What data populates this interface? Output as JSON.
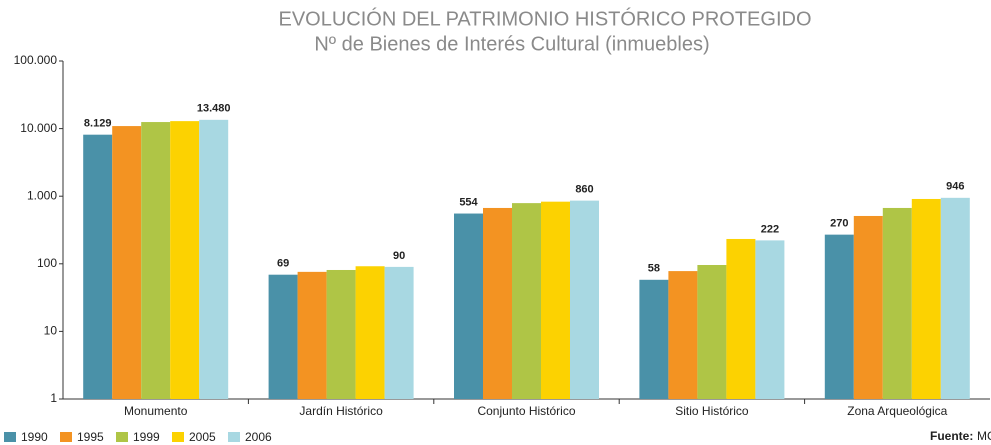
{
  "chart_data": {
    "type": "bar",
    "title": "EVOLUCIÓN DEL PATRIMONIO HISTÓRICO PROTEGIDO",
    "subtitle": "Nº de Bienes de Interés Cultural (inmuebles)",
    "categories": [
      "Monumento",
      "Jardín Histórico",
      "Conjunto Histórico",
      "Sitio Histórico",
      "Zona Arqueológica"
    ],
    "series": [
      {
        "name": "1990",
        "color": "#4a91a8",
        "values": [
          8129,
          69,
          554,
          58,
          270
        ],
        "value_labels": [
          "8.129",
          "69",
          "554",
          "58",
          "270"
        ]
      },
      {
        "name": "1995",
        "color": "#f39322",
        "values": [
          10900,
          76,
          670,
          78,
          510
        ]
      },
      {
        "name": "1999",
        "color": "#afc546",
        "values": [
          12500,
          81,
          790,
          96,
          670
        ]
      },
      {
        "name": "2005",
        "color": "#fcd201",
        "values": [
          12900,
          92,
          830,
          233,
          910
        ]
      },
      {
        "name": "2006",
        "color": "#a8d8e2",
        "values": [
          13480,
          90,
          860,
          222,
          946
        ],
        "value_labels": [
          "13.480",
          "90",
          "860",
          "222",
          "946"
        ]
      }
    ],
    "log_scale": true,
    "ylim": [
      1,
      100000
    ],
    "yticks": [
      1,
      10,
      100,
      {
        "value": 1000,
        "label": "1.000"
      },
      {
        "value": 10000,
        "label": "10.000"
      },
      {
        "value": 100000,
        "label": "100.000"
      }
    ],
    "legend": "bottom-left",
    "source_label": "Fuente:",
    "source": "MC"
  }
}
